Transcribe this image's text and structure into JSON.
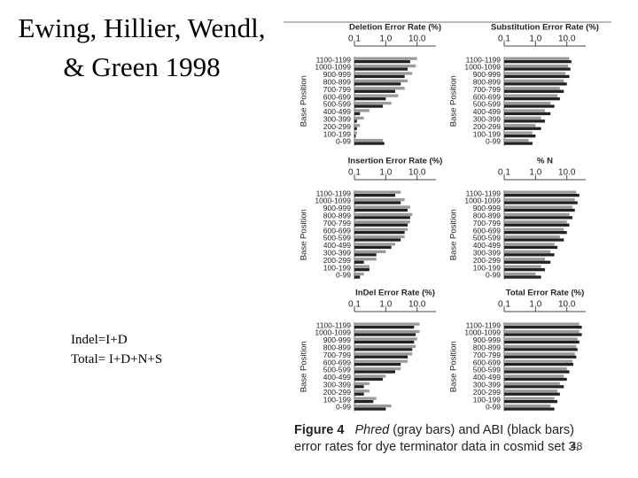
{
  "title": "Ewing, Hillier, Wendl, & Green 1998",
  "notes": [
    "Indel=I+D",
    "Total= I+D+N+S"
  ],
  "caption": {
    "label": "Figure 4",
    "italic": "Phred",
    "text": "(gray bars) and ABI (black bars) error rates for dye terminator data in cosmid set 3."
  },
  "page_number": "48",
  "chart_data": [
    {
      "type": "bar",
      "title": "Deletion Error Rate (%)",
      "y_label": "Base Position",
      "orientation": "horizontal",
      "log_x": true,
      "categories": [
        "1100-1199",
        "1000-1099",
        "900-999",
        "800-899",
        "700-799",
        "600-699",
        "500-599",
        "400-499",
        "300-399",
        "200-299",
        "100-199",
        "0-99"
      ],
      "series": [
        {
          "color": "#9a9a9a",
          "values": [
            10,
            9,
            7,
            5,
            4,
            2.5,
            1.5,
            0.3,
            0.2,
            0.15,
            0.12,
            0.8
          ]
        },
        {
          "color": "#222222",
          "values": [
            6,
            5,
            4,
            3,
            2,
            1,
            0.8,
            0.15,
            0.12,
            0.12,
            0.11,
            0.9
          ]
        }
      ],
      "xlim": [
        0.1,
        40
      ],
      "xticks": [
        0.1,
        {
          "value": 1,
          "label": "1.0"
        },
        {
          "value": 10,
          "label": "10.0"
        }
      ]
    },
    {
      "type": "bar",
      "title": "Substitution Error Rate (%)",
      "y_label": "Base Position",
      "orientation": "horizontal",
      "log_x": true,
      "categories": [
        "1100-1199",
        "1000-1099",
        "900-999",
        "800-899",
        "700-799",
        "600-699",
        "500-599",
        "400-499",
        "300-399",
        "200-299",
        "100-199",
        "0-99"
      ],
      "series": [
        {
          "color": "#9a9a9a",
          "values": [
            12,
            11,
            9,
            8,
            6,
            5,
            3,
            2,
            1.5,
            1,
            0.8,
            0.6
          ]
        },
        {
          "color": "#222222",
          "values": [
            14,
            13,
            12,
            10,
            8,
            6,
            4,
            3,
            2,
            1.5,
            1,
            0.8
          ]
        }
      ],
      "xlim": [
        0.1,
        40
      ],
      "xticks": [
        0.1,
        {
          "value": 1,
          "label": "1.0"
        },
        {
          "value": 10,
          "label": "10.0"
        }
      ]
    },
    {
      "type": "bar",
      "title": "Insertion Error Rate (%)",
      "y_label": "Base Position",
      "orientation": "horizontal",
      "log_x": true,
      "categories": [
        "1100-1199",
        "1000-1099",
        "900-999",
        "800-899",
        "700-799",
        "600-699",
        "500-599",
        "400-499",
        "300-399",
        "200-299",
        "100-199",
        "0-99"
      ],
      "series": [
        {
          "color": "#9a9a9a",
          "values": [
            3,
            4,
            6,
            7,
            6,
            5,
            4,
            2,
            1,
            0.5,
            0.3,
            0.2
          ]
        },
        {
          "color": "#222222",
          "values": [
            2,
            3,
            5,
            6,
            5,
            4,
            3,
            1.5,
            0.5,
            0.2,
            0.3,
            0.15
          ]
        }
      ],
      "xlim": [
        0.1,
        40
      ],
      "xticks": [
        0.1,
        {
          "value": 1,
          "label": "1.0"
        },
        {
          "value": 10,
          "label": "10.0"
        }
      ]
    },
    {
      "type": "bar",
      "title": "% N",
      "y_label": "Base Position",
      "orientation": "horizontal",
      "log_x": true,
      "categories": [
        "1100-1199",
        "1000-1099",
        "900-999",
        "800-899",
        "700-799",
        "600-699",
        "500-599",
        "400-499",
        "300-399",
        "200-299",
        "100-199",
        "0-99"
      ],
      "series": [
        {
          "color": "#9a9a9a",
          "values": [
            20,
            18,
            15,
            12,
            10,
            8,
            6,
            4,
            3,
            2,
            1.5,
            1
          ]
        },
        {
          "color": "#222222",
          "values": [
            25,
            22,
            18,
            15,
            12,
            10,
            8,
            5,
            4,
            3,
            2,
            1.5
          ]
        }
      ],
      "xlim": [
        0.1,
        40
      ],
      "xticks": [
        0.1,
        {
          "value": 1,
          "label": "1.0"
        },
        {
          "value": 10,
          "label": "10.0"
        }
      ]
    },
    {
      "type": "bar",
      "title": "InDel Error Rate (%)",
      "y_label": "Base Position",
      "orientation": "horizontal",
      "log_x": true,
      "categories": [
        "1100-1199",
        "1000-1099",
        "900-999",
        "800-899",
        "700-799",
        "600-699",
        "500-599",
        "400-499",
        "300-399",
        "200-299",
        "100-199",
        "0-99"
      ],
      "series": [
        {
          "color": "#9a9a9a",
          "values": [
            12,
            12,
            10,
            9,
            7,
            5,
            3,
            1,
            0.3,
            0.3,
            0.5,
            1.5
          ]
        },
        {
          "color": "#222222",
          "values": [
            8,
            9,
            8,
            7,
            5,
            3,
            2,
            0.8,
            0.2,
            0.2,
            0.4,
            1
          ]
        }
      ],
      "xlim": [
        0.1,
        40
      ],
      "xticks": [
        0.1,
        {
          "value": 1,
          "label": "1.0"
        },
        {
          "value": 10,
          "label": "10.0"
        }
      ]
    },
    {
      "type": "bar",
      "title": "Total Error Rate (%)",
      "y_label": "Base Position",
      "orientation": "horizontal",
      "log_x": true,
      "categories": [
        "1100-1199",
        "1000-1099",
        "900-999",
        "800-899",
        "700-799",
        "600-699",
        "500-599",
        "400-499",
        "300-399",
        "200-299",
        "100-199",
        "0-99"
      ],
      "series": [
        {
          "color": "#9a9a9a",
          "values": [
            25,
            25,
            22,
            20,
            18,
            15,
            10,
            8,
            6,
            5,
            4,
            3
          ]
        },
        {
          "color": "#222222",
          "values": [
            30,
            30,
            25,
            22,
            20,
            16,
            12,
            10,
            8,
            6,
            5,
            4
          ]
        }
      ],
      "xlim": [
        0.1,
        40
      ],
      "xticks": [
        0.1,
        {
          "value": 1,
          "label": "1.0"
        },
        {
          "value": 10,
          "label": "10.0"
        }
      ]
    }
  ]
}
